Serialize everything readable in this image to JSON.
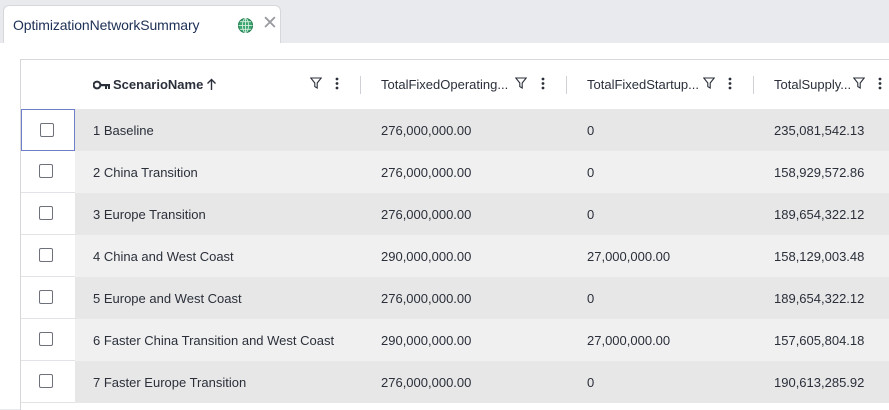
{
  "tab": {
    "title": "OptimizationNetworkSummary",
    "globe_icon": "globe-icon",
    "close_icon": "close-icon"
  },
  "grid": {
    "columns": [
      {
        "label": "ScenarioName",
        "key_icon": true,
        "sort": "ascending"
      },
      {
        "label": "TotalFixedOperating..."
      },
      {
        "label": "TotalFixedStartup..."
      },
      {
        "label": "TotalSupply..."
      }
    ],
    "rows": [
      {
        "scenario": "1 Baseline",
        "fixed_operating": "276,000,000.00",
        "fixed_startup": "0",
        "supply": "235,081,542.13",
        "active": true
      },
      {
        "scenario": "2 China Transition",
        "fixed_operating": "276,000,000.00",
        "fixed_startup": "0",
        "supply": "158,929,572.86"
      },
      {
        "scenario": "3 Europe Transition",
        "fixed_operating": "276,000,000.00",
        "fixed_startup": "0",
        "supply": "189,654,322.12"
      },
      {
        "scenario": "4 China and West Coast",
        "fixed_operating": "290,000,000.00",
        "fixed_startup": "27,000,000.00",
        "supply": "158,129,003.48"
      },
      {
        "scenario": "5 Europe and West Coast",
        "fixed_operating": "276,000,000.00",
        "fixed_startup": "0",
        "supply": "189,654,322.12"
      },
      {
        "scenario": "6 Faster China Transition and West Coast",
        "fixed_operating": "290,000,000.00",
        "fixed_startup": "27,000,000.00",
        "supply": "157,605,804.18"
      },
      {
        "scenario": "7 Faster Europe Transition",
        "fixed_operating": "276,000,000.00",
        "fixed_startup": "0",
        "supply": "190,613,285.92"
      }
    ]
  },
  "colors": {
    "tab_text": "#1c2f55",
    "globe": "#2e9a63",
    "active_border": "#6c7fc7",
    "row_odd": "#e7e7e7",
    "row_even": "#f0f0f0"
  }
}
